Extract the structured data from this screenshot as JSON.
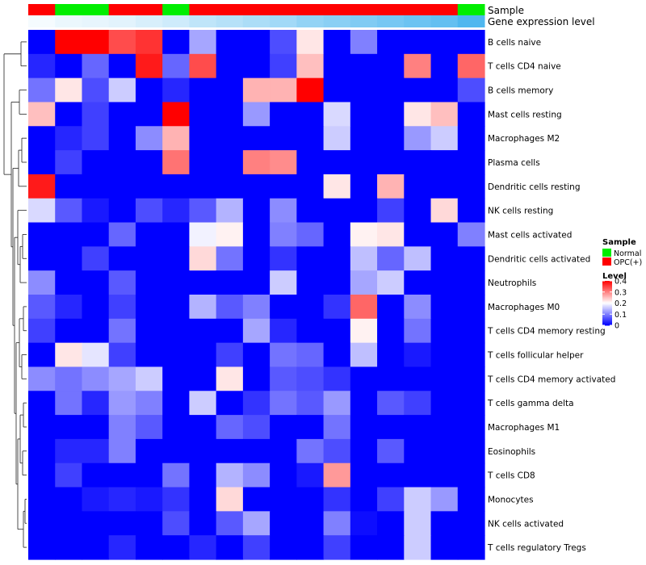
{
  "chart_data": {
    "type": "heatmap",
    "annotation_labels": {
      "sample": "Sample",
      "level": "Gene expression level"
    },
    "sample_groups": [
      "OPC(+)",
      "Normal",
      "Normal",
      "OPC(+)",
      "OPC(+)",
      "Normal",
      "OPC(+)",
      "OPC(+)",
      "OPC(+)",
      "OPC(+)",
      "OPC(+)",
      "OPC(+)",
      "OPC(+)",
      "OPC(+)",
      "OPC(+)",
      "OPC(+)",
      "Normal"
    ],
    "gene_expression_level": [
      0.02,
      0.04,
      0.05,
      0.06,
      0.08,
      0.1,
      0.13,
      0.15,
      0.17,
      0.19,
      0.22,
      0.24,
      0.26,
      0.28,
      0.3,
      0.32,
      0.36
    ],
    "rows": [
      "B cells naive",
      "T cells CD4 naive",
      "B cells memory",
      "Mast cells resting",
      "Macrophages M2",
      "Plasma cells",
      "Dendritic cells resting",
      "NK cells resting",
      "Mast cells activated",
      "Dendritic cells activated",
      "Neutrophils",
      "Macrophages M0",
      "T cells CD4 memory resting",
      "T cells follicular helper",
      "T cells CD4 memory activated",
      "T cells gamma delta",
      "Macrophages M1",
      "Eosinophils",
      "T cells CD8",
      "Monocytes",
      "NK cells activated",
      "T cells regulatory  Tregs"
    ],
    "values": [
      [
        0.0,
        0.4,
        0.4,
        0.34,
        0.36,
        0.0,
        0.13,
        0.0,
        0.0,
        0.06,
        0.22,
        0.0,
        0.1,
        0.0,
        0.0,
        0.0,
        0.0
      ],
      [
        0.03,
        0.0,
        0.08,
        0.0,
        0.38,
        0.08,
        0.34,
        0.0,
        0.0,
        0.05,
        0.25,
        0.0,
        0.0,
        0.0,
        0.3,
        0.0,
        0.32
      ],
      [
        0.09,
        0.22,
        0.06,
        0.16,
        0.0,
        0.03,
        0.0,
        0.0,
        0.26,
        0.26,
        0.4,
        0.0,
        0.0,
        0.0,
        0.0,
        0.0,
        0.06
      ],
      [
        0.25,
        0.0,
        0.05,
        0.0,
        0.0,
        0.4,
        0.0,
        0.0,
        0.12,
        0.0,
        0.0,
        0.17,
        0.0,
        0.0,
        0.22,
        0.25,
        0.0
      ],
      [
        0.0,
        0.03,
        0.05,
        0.0,
        0.11,
        0.26,
        0.0,
        0.0,
        0.0,
        0.0,
        0.0,
        0.16,
        0.0,
        0.0,
        0.12,
        0.16,
        0.0
      ],
      [
        0.0,
        0.05,
        0.0,
        0.0,
        0.0,
        0.31,
        0.0,
        0.0,
        0.3,
        0.29,
        0.0,
        0.0,
        0.0,
        0.0,
        0.0,
        0.0,
        0.0
      ],
      [
        0.38,
        0.0,
        0.0,
        0.0,
        0.0,
        0.0,
        0.0,
        0.0,
        0.0,
        0.0,
        0.0,
        0.22,
        0.0,
        0.26,
        0.0,
        0.0,
        0.0
      ],
      [
        0.17,
        0.07,
        0.02,
        0.0,
        0.06,
        0.03,
        0.07,
        0.14,
        0.0,
        0.11,
        0.0,
        0.0,
        0.0,
        0.05,
        0.0,
        0.23,
        0.0
      ],
      [
        0.0,
        0.0,
        0.0,
        0.08,
        0.0,
        0.0,
        0.19,
        0.21,
        0.0,
        0.1,
        0.08,
        0.0,
        0.21,
        0.22,
        0.0,
        0.0,
        0.1
      ],
      [
        0.0,
        0.0,
        0.05,
        0.0,
        0.0,
        0.0,
        0.23,
        0.09,
        0.0,
        0.04,
        0.0,
        0.0,
        0.15,
        0.08,
        0.15,
        0.0,
        0.0
      ],
      [
        0.11,
        0.0,
        0.0,
        0.07,
        0.0,
        0.0,
        0.0,
        0.0,
        0.0,
        0.16,
        0.0,
        0.0,
        0.13,
        0.16,
        0.0,
        0.0,
        0.0
      ],
      [
        0.07,
        0.03,
        0.0,
        0.05,
        0.0,
        0.0,
        0.14,
        0.07,
        0.1,
        0.0,
        0.0,
        0.04,
        0.32,
        0.0,
        0.11,
        0.0,
        0.0
      ],
      [
        0.05,
        0.0,
        0.0,
        0.09,
        0.0,
        0.0,
        0.0,
        0.0,
        0.13,
        0.03,
        0.0,
        0.0,
        0.21,
        0.0,
        0.09,
        0.0,
        0.0
      ],
      [
        0.0,
        0.22,
        0.18,
        0.05,
        0.0,
        0.0,
        0.0,
        0.05,
        0.0,
        0.09,
        0.08,
        0.0,
        0.15,
        0.0,
        0.02,
        0.0,
        0.0
      ],
      [
        0.11,
        0.09,
        0.11,
        0.13,
        0.16,
        0.0,
        0.0,
        0.22,
        0.0,
        0.07,
        0.06,
        0.04,
        0.0,
        0.0,
        0.0,
        0.0,
        0.0
      ],
      [
        0.0,
        0.09,
        0.03,
        0.12,
        0.1,
        0.0,
        0.16,
        0.0,
        0.04,
        0.09,
        0.07,
        0.12,
        0.0,
        0.07,
        0.05,
        0.0,
        0.0
      ],
      [
        0.0,
        0.0,
        0.0,
        0.1,
        0.07,
        0.0,
        0.0,
        0.08,
        0.06,
        0.0,
        0.0,
        0.09,
        0.0,
        0.0,
        0.0,
        0.0,
        0.0
      ],
      [
        0.0,
        0.03,
        0.03,
        0.1,
        0.0,
        0.0,
        0.0,
        0.0,
        0.0,
        0.0,
        0.09,
        0.06,
        0.0,
        0.07,
        0.0,
        0.0,
        0.0
      ],
      [
        0.0,
        0.05,
        0.0,
        0.0,
        0.0,
        0.09,
        0.0,
        0.14,
        0.11,
        0.0,
        0.02,
        0.28,
        0.0,
        0.0,
        0.0,
        0.0,
        0.0
      ],
      [
        0.0,
        0.0,
        0.02,
        0.03,
        0.02,
        0.04,
        0.0,
        0.23,
        0.0,
        0.0,
        0.0,
        0.04,
        0.0,
        0.05,
        0.16,
        0.12,
        0.0
      ],
      [
        0.0,
        0.0,
        0.0,
        0.0,
        0.0,
        0.06,
        0.0,
        0.07,
        0.13,
        0.0,
        0.0,
        0.1,
        0.01,
        0.0,
        0.16,
        0.0,
        0.0
      ],
      [
        0.0,
        0.0,
        0.0,
        0.03,
        0.0,
        0.0,
        0.03,
        0.0,
        0.05,
        0.0,
        0.0,
        0.05,
        0.0,
        0.0,
        0.16,
        0.0,
        0.0
      ]
    ],
    "color_scale": {
      "min": 0,
      "mid": 0.2,
      "max": 0.4,
      "low_color": "#0000ff",
      "mid_color": "#ffffff",
      "high_color": "#ff0000"
    },
    "group_colors": {
      "Normal": "#00ee00",
      "OPC(+)": "#ff0000"
    },
    "level_colors": {
      "low": "#ffffff",
      "high": "#4fb7ef"
    },
    "legend": {
      "sample_title": "Sample",
      "sample_entries": [
        "Normal",
        "OPC(+)"
      ],
      "level_title": "Level",
      "level_ticks": [
        "0.4",
        "0.3",
        "0.2",
        "0.1",
        "0"
      ],
      "level_tick_values": [
        0.4,
        0.3,
        0.2,
        0.1,
        0
      ]
    },
    "row_dendrogram": true
  }
}
